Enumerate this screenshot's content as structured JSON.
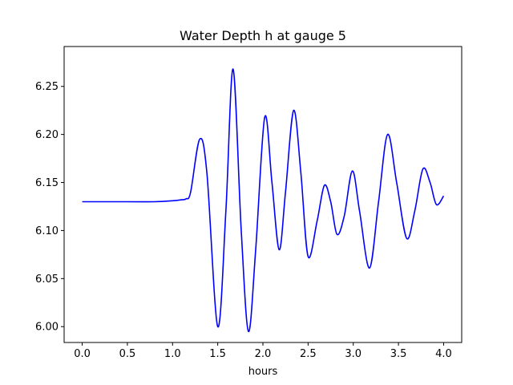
{
  "chart_data": {
    "type": "line",
    "title": "Water Depth h at gauge 5",
    "xlabel": "hours",
    "ylabel": "",
    "xlim": [
      -0.2,
      4.2
    ],
    "ylim": [
      5.9835,
      6.2915
    ],
    "xticks": [
      0.0,
      0.5,
      1.0,
      1.5,
      2.0,
      2.5,
      3.0,
      3.5,
      4.0
    ],
    "xtick_labels": [
      "0.0",
      "0.5",
      "1.0",
      "1.5",
      "2.0",
      "2.5",
      "3.0",
      "3.5",
      "4.0"
    ],
    "yticks": [
      6.0,
      6.05,
      6.1,
      6.15,
      6.2,
      6.25
    ],
    "ytick_labels": [
      "6.00",
      "6.05",
      "6.10",
      "6.15",
      "6.20",
      "6.25"
    ],
    "grid": false,
    "colors": {
      "line": "#0000ff",
      "axes": "#000000",
      "background": "#ffffff"
    },
    "series": [
      {
        "x": [
          0.0,
          0.5,
          0.8,
          1.0,
          1.1,
          1.15,
          1.2,
          1.3,
          1.38,
          1.5,
          1.59,
          1.67,
          1.76,
          1.84,
          1.92,
          2.02,
          2.1,
          2.18,
          2.25,
          2.34,
          2.42,
          2.5,
          2.6,
          2.68,
          2.75,
          2.82,
          2.9,
          2.99,
          3.07,
          3.18,
          3.28,
          3.38,
          3.48,
          3.59,
          3.68,
          3.77,
          3.85,
          3.92,
          4.0
        ],
        "y": [
          6.13,
          6.13,
          6.13,
          6.131,
          6.132,
          6.133,
          6.14,
          6.195,
          6.16,
          6.0,
          6.12,
          6.268,
          6.1,
          5.995,
          6.08,
          6.218,
          6.15,
          6.08,
          6.14,
          6.225,
          6.16,
          6.073,
          6.11,
          6.147,
          6.13,
          6.096,
          6.115,
          6.162,
          6.12,
          6.061,
          6.13,
          6.2,
          6.15,
          6.092,
          6.12,
          6.164,
          6.15,
          6.127,
          6.136
        ]
      }
    ]
  }
}
